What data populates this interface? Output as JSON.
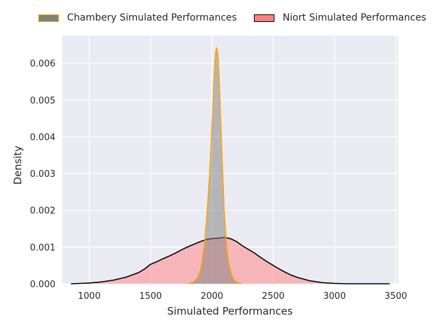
{
  "chart_data": {
    "type": "area",
    "xlabel": "Simulated Performances",
    "ylabel": "Density",
    "xlim": [
      780,
      3520
    ],
    "ylim": [
      0,
      0.00675
    ],
    "x_ticks": [
      1000,
      1500,
      2000,
      2500,
      3000,
      3500
    ],
    "y_ticks": [
      0.0,
      0.001,
      0.002,
      0.003,
      0.004,
      0.005,
      0.006
    ],
    "y_tick_labels": [
      "0.000",
      "0.001",
      "0.002",
      "0.003",
      "0.004",
      "0.005",
      "0.006"
    ],
    "grid": true,
    "legend_position": "top-center, outside plot",
    "background": "#eaeaf2",
    "series": [
      {
        "name": "Niort Simulated Performances",
        "fill": "#ff7f7f",
        "fill_opacity": 0.5,
        "line_color": "#000000",
        "x": [
          850,
          1000,
          1100,
          1200,
          1300,
          1400,
          1450,
          1500,
          1550,
          1600,
          1650,
          1700,
          1750,
          1800,
          1850,
          1900,
          1950,
          2000,
          2050,
          2100,
          2150,
          2200,
          2250,
          2300,
          2350,
          2400,
          2450,
          2500,
          2550,
          2600,
          2650,
          2700,
          2800,
          2900,
          3000,
          3100,
          3200,
          3300,
          3450
        ],
        "y": [
          0.0,
          2e-05,
          5e-05,
          0.0001,
          0.00018,
          0.0003,
          0.0004,
          0.00053,
          0.0006,
          0.00068,
          0.00075,
          0.00083,
          0.00092,
          0.001,
          0.00107,
          0.00114,
          0.0012,
          0.00123,
          0.00124,
          0.00126,
          0.00123,
          0.00115,
          0.00103,
          0.00093,
          0.00083,
          0.00071,
          0.0006,
          0.0005,
          0.0004,
          0.00031,
          0.00023,
          0.00017,
          8e-05,
          3e-05,
          1e-05,
          0.0,
          0.0,
          0.0,
          0.0
        ]
      },
      {
        "name": "Chambery Simulated Performances",
        "fill": "#808080",
        "fill_opacity": 0.5,
        "line_color": "#ffa500",
        "x": [
          1810,
          1850,
          1880,
          1900,
          1920,
          1940,
          1960,
          1980,
          2000,
          2010,
          2020,
          2030,
          2040,
          2050,
          2060,
          2070,
          2080,
          2090,
          2100,
          2120,
          2140,
          2160,
          2180,
          2200,
          2220,
          2240
        ],
        "y": [
          0.0,
          5e-05,
          0.00015,
          0.0003,
          0.0006,
          0.0011,
          0.0019,
          0.0029,
          0.0042,
          0.005,
          0.0058,
          0.0063,
          0.00643,
          0.0062,
          0.0055,
          0.0046,
          0.0037,
          0.0028,
          0.002,
          0.001,
          0.0005,
          0.00025,
          0.0001,
          5e-05,
          2e-05,
          0.0
        ]
      }
    ]
  },
  "legend": {
    "items": [
      {
        "label": "Chambery Simulated Performances",
        "swatch_fill": "#808080",
        "swatch_edge": "#ffa500"
      },
      {
        "label": "Niort Simulated Performances",
        "swatch_fill": "#ff7f7f",
        "swatch_edge": "#000000"
      }
    ]
  }
}
